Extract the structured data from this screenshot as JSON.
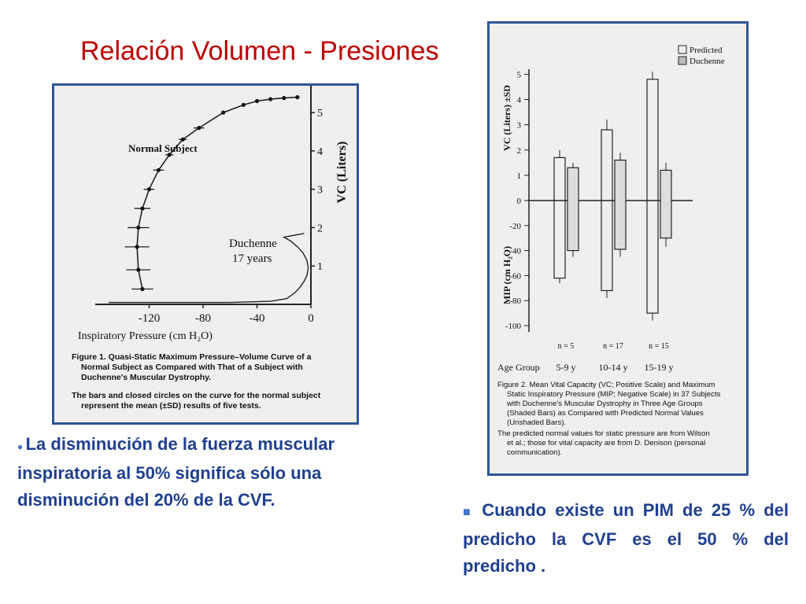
{
  "slide": {
    "title": "Relación Volumen - Presiones",
    "bullet_left": "La disminución de la fuerza muscular inspiratoria al 50% significa sólo una disminución del 20% de la CVF.",
    "bullet_right": "Cuando existe un PIM de 25 % del predicho la CVF es el 50 % del predicho ."
  },
  "colors": {
    "title": "#c00000",
    "body_text": "#1f3f8f",
    "frame": "#2f5597"
  },
  "figure1": {
    "caption_lines": [
      "Figure 1. Quasi-Static Maximum Pressure–Volume Curve of a",
      "Normal Subject as Compared with That of a Subject with",
      "Duchenne's Muscular Dystrophy.",
      "The bars and closed circles on the curve for the normal subject",
      "represent the mean (±SD) results of five tests."
    ]
  },
  "figure2": {
    "caption_lines": [
      "Figure 2. Mean Vital Capacity (VC; Positive Scale) and Maximum",
      "Static Inspiratory Pressure (MIP; Negative Scale) in 37 Subjects",
      "with Duchenne's Muscular Dystrophy in Three Age Groups",
      "(Shaded Bars) as Compared with Predicted Normal Values",
      "(Unshaded Bars).",
      "The predicted normal values for static pressure are from Wilson",
      "et al.; those for vital capacity are from D. Denison (personal",
      "communication)."
    ]
  },
  "chart_data": [
    {
      "type": "line",
      "xlabel": "Inspiratory Pressure (cm H₂O)",
      "ylabel": "VC (Liters)",
      "xlim": [
        -160,
        0
      ],
      "ylim": [
        0,
        5.7
      ],
      "x_ticks": [
        "-120",
        "-80",
        "-40",
        "0"
      ],
      "y_ticks": [
        "1",
        "2",
        "3",
        "4",
        "5"
      ],
      "annotations": [
        "Normal Subject",
        "Duchenne",
        "17 years"
      ],
      "series": [
        {
          "name": "Normal Subject",
          "x": [
            -125,
            -128,
            -129,
            -128,
            -125,
            -120,
            -113,
            -105,
            -95,
            -83,
            -65,
            -50,
            -40,
            -30,
            -20,
            -10
          ],
          "y": [
            0.4,
            0.9,
            1.5,
            2.0,
            2.5,
            3.0,
            3.5,
            3.9,
            4.3,
            4.6,
            5.0,
            5.2,
            5.3,
            5.35,
            5.38,
            5.4
          ],
          "sd": [
            8,
            9,
            9,
            8,
            6,
            4,
            4,
            3,
            3,
            4,
            0,
            0,
            0,
            0,
            0,
            0
          ]
        },
        {
          "name": "Duchenne",
          "x": [
            -150,
            -60,
            -30,
            -18,
            -12,
            -8,
            -5,
            -3,
            -2,
            -3,
            -6,
            -10,
            -15,
            -20,
            -5
          ],
          "y": [
            0.05,
            0.05,
            0.08,
            0.15,
            0.3,
            0.45,
            0.6,
            0.75,
            0.95,
            1.15,
            1.35,
            1.5,
            1.65,
            1.75,
            1.85
          ]
        }
      ]
    },
    {
      "type": "bar",
      "xlabel": "Age Group",
      "ylabel_top": "VC (Liters) ±SD",
      "ylabel_bottom": "MIP (cm H₂O)",
      "legend": [
        "Predicted",
        "Duchenne"
      ],
      "legend_position": "top-right",
      "categories": [
        "5-9 y",
        "10-14 y",
        "15-19 y"
      ],
      "n_labels": [
        "n = 5",
        "n = 17",
        "n = 15"
      ],
      "vc_ticks": [
        "1",
        "2",
        "3",
        "4",
        "5"
      ],
      "mip_ticks": [
        "0",
        "-20",
        "-40",
        "-60",
        "-80",
        "-100"
      ],
      "vc_ylim": [
        0,
        5.2
      ],
      "mip_ylim": [
        -105,
        0
      ],
      "series": [
        {
          "name": "Predicted",
          "vc": [
            1.7,
            2.8,
            4.8
          ],
          "vc_sd": [
            0.3,
            0.4,
            0.3
          ],
          "mip": [
            -62,
            -72,
            -90
          ],
          "mip_sd": [
            4,
            6,
            6
          ]
        },
        {
          "name": "Duchenne",
          "vc": [
            1.3,
            1.6,
            1.2
          ],
          "vc_sd": [
            0.2,
            0.3,
            0.3
          ],
          "mip": [
            -40,
            -39,
            -30
          ],
          "mip_sd": [
            5,
            6,
            7
          ]
        }
      ]
    }
  ]
}
